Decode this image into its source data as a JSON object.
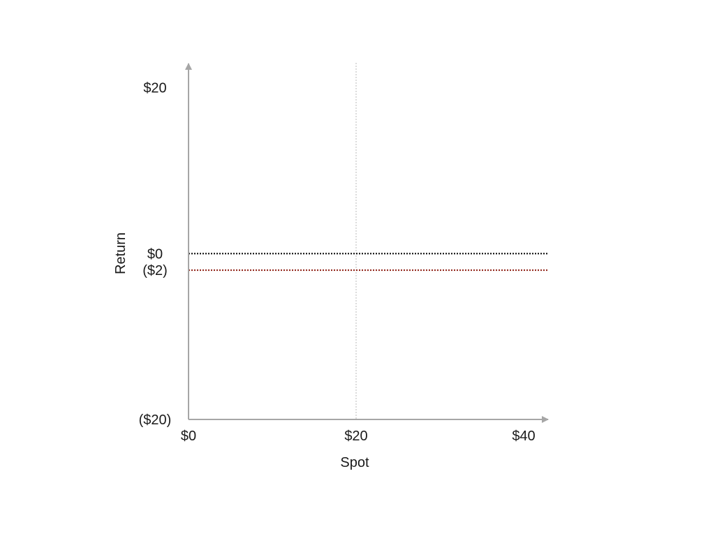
{
  "chart_data": {
    "type": "line",
    "title": "",
    "xlabel": "Spot",
    "ylabel": "Return",
    "xlim": [
      0,
      43
    ],
    "ylim": [
      -20,
      23
    ],
    "x_ticks": [
      {
        "value": 0,
        "label": "$0"
      },
      {
        "value": 20,
        "label": "$20"
      },
      {
        "value": 40,
        "label": "$40"
      }
    ],
    "y_ticks": [
      {
        "value": 20,
        "label": "$20"
      },
      {
        "value": 0,
        "label": "$0"
      },
      {
        "value": -2,
        "label": "($2)"
      },
      {
        "value": -20,
        "label": "($20)"
      }
    ],
    "grid": false,
    "series": [
      {
        "x": [
          0,
          43
        ],
        "y": [
          0,
          0
        ],
        "color": "#000000",
        "style": "dotted"
      },
      {
        "x": [
          0,
          43
        ],
        "y": [
          -2,
          -2
        ],
        "color": "#8b1a0e",
        "style": "dotted"
      }
    ],
    "reference_lines": [
      {
        "axis": "x",
        "value": 20,
        "color": "#d0d0d0",
        "style": "dotted"
      }
    ],
    "colors": {
      "axis": "#a6a6a6",
      "text": "#1a1a1a"
    }
  }
}
